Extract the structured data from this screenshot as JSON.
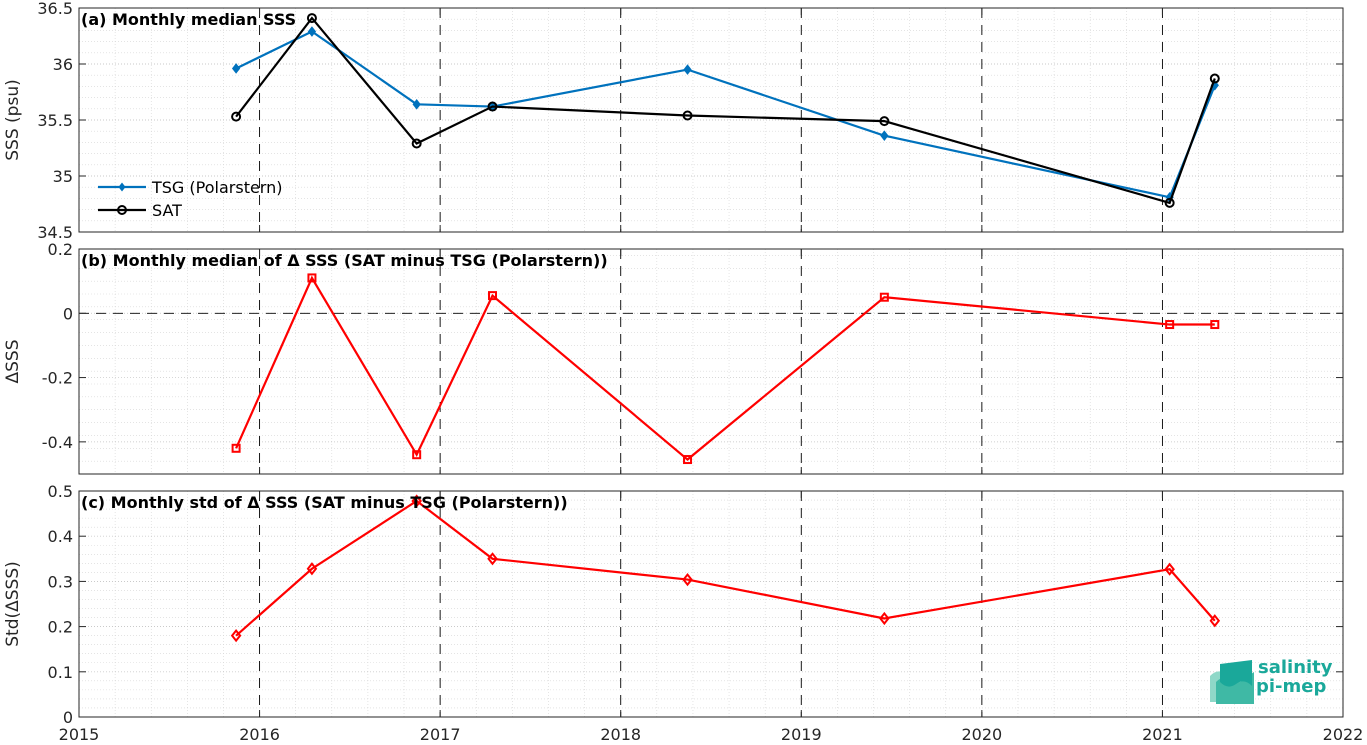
{
  "logo": {
    "line1": "salinity",
    "line2": "pi-mep",
    "color": "#1aa89a"
  },
  "x_axis": {
    "xlim": [
      2015,
      2022
    ],
    "ticks": [
      "2015",
      "2016",
      "2017",
      "2018",
      "2019",
      "2020",
      "2021",
      "2022"
    ],
    "vertical_dashed_lines": [
      2016,
      2017,
      2018,
      2019,
      2020,
      2021
    ]
  },
  "chart_data": [
    {
      "type": "line",
      "title": "(a) Monthly median SSS",
      "ylabel": "SSS (psu)",
      "ylim": [
        34.5,
        36.5
      ],
      "yticks": [
        "34.5",
        "35",
        "35.5",
        "36",
        "36.5"
      ],
      "grid": true,
      "legend_position": "lower-left",
      "series": [
        {
          "name": "TSG (Polarstern)",
          "color": "#0072bd",
          "marker": "filled-diamond",
          "x": [
            2015.87,
            2016.29,
            2016.87,
            2017.29,
            2018.37,
            2019.46,
            2021.04,
            2021.29
          ],
          "values": [
            35.96,
            36.29,
            35.64,
            35.62,
            35.95,
            35.36,
            34.81,
            35.81
          ]
        },
        {
          "name": "SAT",
          "color": "#000000",
          "marker": "open-circle",
          "x": [
            2015.87,
            2016.29,
            2016.87,
            2017.29,
            2018.37,
            2019.46,
            2021.04,
            2021.29
          ],
          "values": [
            35.53,
            36.41,
            35.29,
            35.62,
            35.54,
            35.49,
            34.76,
            35.87
          ]
        }
      ]
    },
    {
      "type": "line",
      "title": "(b) Monthly median of Δ SSS (SAT minus TSG (Polarstern))",
      "ylabel": "ΔSSS",
      "ylim": [
        -0.5,
        0.2
      ],
      "yticks": [
        "-0.4",
        "-0.2",
        "0",
        "0.2"
      ],
      "grid": true,
      "zero_line": "dashed",
      "series": [
        {
          "color": "#ff0000",
          "marker": "open-square",
          "x": [
            2015.87,
            2016.29,
            2016.87,
            2017.29,
            2018.37,
            2019.46,
            2021.04,
            2021.29
          ],
          "values": [
            -0.42,
            0.11,
            -0.44,
            0.055,
            -0.455,
            0.05,
            -0.035,
            -0.035
          ]
        }
      ]
    },
    {
      "type": "line",
      "title": "(c) Monthly std of Δ SSS (SAT minus TSG (Polarstern))",
      "ylabel": "Std(ΔSSS)",
      "ylim": [
        0,
        0.5
      ],
      "yticks": [
        "0",
        "0.1",
        "0.2",
        "0.3",
        "0.4",
        "0.5"
      ],
      "grid": true,
      "series": [
        {
          "color": "#ff0000",
          "marker": "open-diamond",
          "x": [
            2015.87,
            2016.29,
            2016.87,
            2017.29,
            2018.37,
            2019.46,
            2021.04,
            2021.29
          ],
          "values": [
            0.18,
            0.328,
            0.478,
            0.35,
            0.304,
            0.218,
            0.327,
            0.213
          ]
        }
      ]
    }
  ]
}
